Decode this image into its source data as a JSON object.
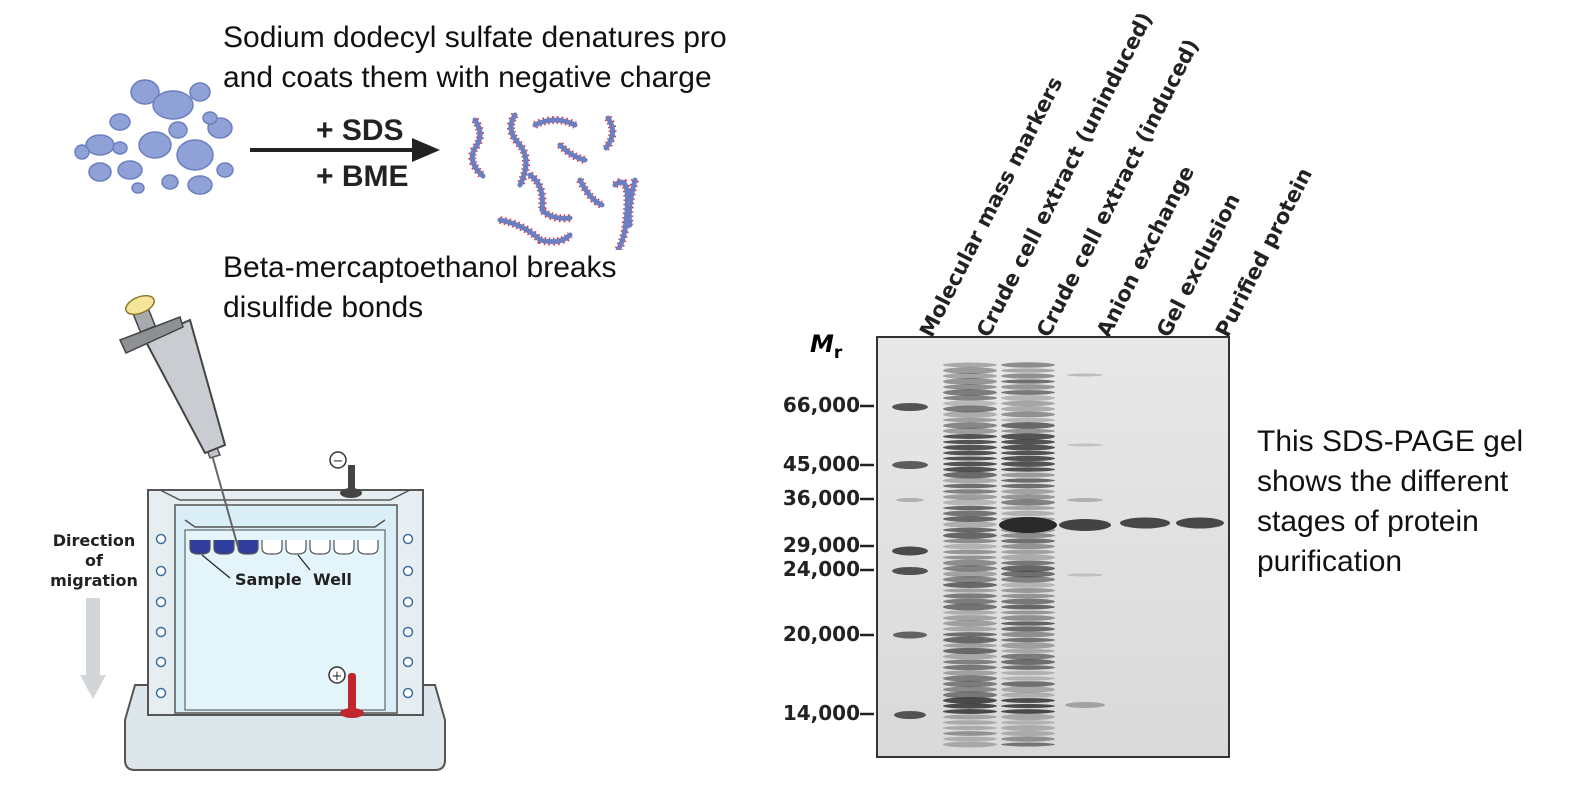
{
  "top_text": {
    "sds_line1": "Sodium dodecyl sulfate denatures pro",
    "sds_line2": "and coats them with negative charge",
    "bme_line1": "Beta-mercaptoethanol breaks",
    "bme_line2": "disulfide bonds"
  },
  "reaction": {
    "reagent_1": "+ SDS",
    "reagent_2": "+ BME"
  },
  "apparatus": {
    "direction_line1": "Direction",
    "direction_line2": "of",
    "direction_line3": "migration",
    "sample_label": "Sample",
    "well_label": "Well",
    "minus_symbol": "−",
    "plus_symbol": "+"
  },
  "gel": {
    "mr_label_main": "M",
    "mr_label_sub": "r",
    "lanes": [
      "Molecular mass markers",
      "Crude cell extract (uninduced)",
      "Crude cell extract (induced)",
      "Anion exchange",
      "Gel exclusion",
      "Purified protein"
    ],
    "markers": [
      "66,000",
      "45,000",
      "36,000",
      "29,000",
      "24,000",
      "20,000",
      "14,000"
    ]
  },
  "caption": {
    "line1": "This SDS-PAGE gel",
    "line2": "shows the different",
    "line3": "stages of protein",
    "line4": "purification"
  },
  "colors": {
    "protein_blob": "#8fa1d6",
    "protein_outline": "#6b7fc0",
    "sds_charge": "#e0343a",
    "well_fill": "#2f3e9e",
    "tank_fill": "#dde6ea",
    "gel_bg": "#e6e6e6",
    "band": "#3a3a3a",
    "arrow": "#222222"
  }
}
